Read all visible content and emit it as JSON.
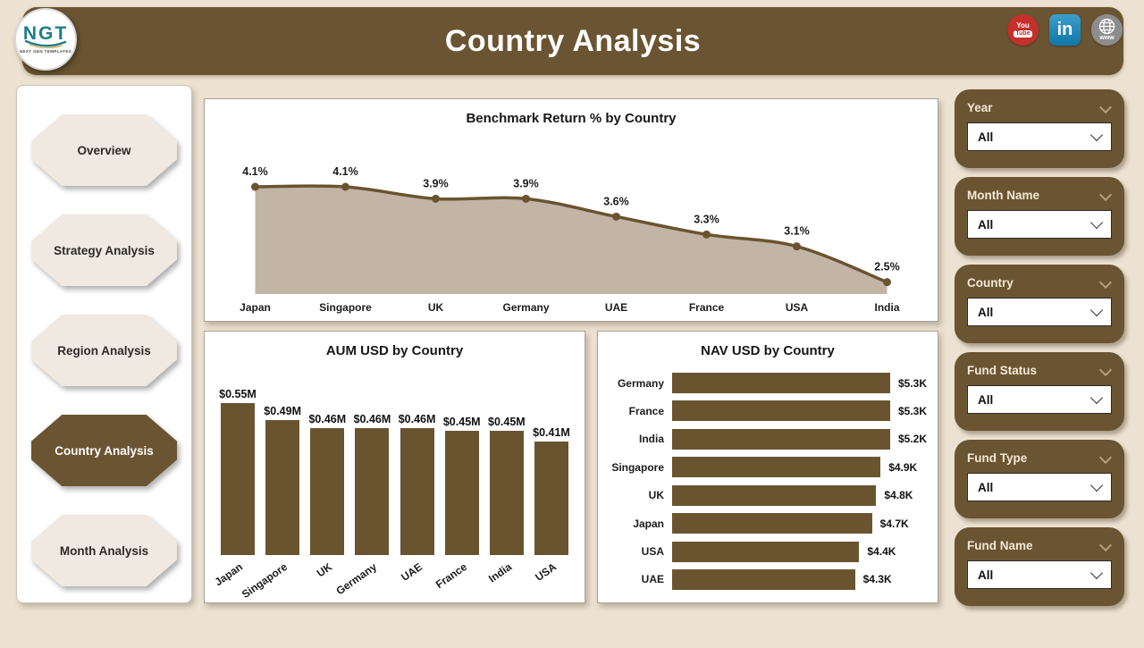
{
  "header": {
    "title": "Country Analysis",
    "logo": {
      "text": "NGT",
      "subtext": "NEXT GEN TEMPLATES"
    },
    "social": {
      "youtube": "You Tube",
      "linkedin": "in",
      "website": "www"
    }
  },
  "nav": {
    "items": [
      {
        "label": "Overview",
        "active": false
      },
      {
        "label": "Strategy Analysis",
        "active": false
      },
      {
        "label": "Region Analysis",
        "active": false
      },
      {
        "label": "Country Analysis",
        "active": true
      },
      {
        "label": "Month Analysis",
        "active": false
      }
    ]
  },
  "filters": [
    {
      "label": "Year",
      "value": "All"
    },
    {
      "label": "Month Name",
      "value": "All"
    },
    {
      "label": "Country",
      "value": "All"
    },
    {
      "label": "Fund Status",
      "value": "All"
    },
    {
      "label": "Fund Type",
      "value": "All"
    },
    {
      "label": "Fund Name",
      "value": "All"
    }
  ],
  "colors": {
    "brand_brown": "#6B5431",
    "bar_brown": "#6A5430",
    "area_fill": "#C2B5A6",
    "page_bg": "#EDE2D1",
    "panel_bg": "#FFFFFF",
    "text_dark": "#171717",
    "youtube_red": "#C4302B",
    "linkedin_blue": "#0E76A8",
    "globe_gray": "#8D8D8D",
    "logo_teal": "#1F7D8A"
  },
  "chart_data": [
    {
      "type": "area",
      "title": "Benchmark Return % by Country",
      "categories": [
        "Japan",
        "Singapore",
        "UK",
        "Germany",
        "UAE",
        "France",
        "USA",
        "India"
      ],
      "values": [
        4.1,
        4.1,
        3.9,
        3.9,
        3.6,
        3.3,
        3.1,
        2.5
      ],
      "labels": [
        "4.1%",
        "4.1%",
        "3.9%",
        "3.9%",
        "3.6%",
        "3.3%",
        "3.1%",
        "2.5%"
      ],
      "ylim": [
        2.3,
        4.4
      ],
      "grid": false,
      "legend": "none"
    },
    {
      "type": "bar",
      "title": "AUM USD by Country",
      "categories": [
        "Japan",
        "Singapore",
        "UK",
        "Germany",
        "UAE",
        "France",
        "India",
        "USA"
      ],
      "values": [
        0.55,
        0.49,
        0.46,
        0.46,
        0.46,
        0.45,
        0.45,
        0.41
      ],
      "labels": [
        "$0.55M",
        "$0.49M",
        "$0.46M",
        "$0.46M",
        "$0.46M",
        "$0.45M",
        "$0.45M",
        "$0.41M"
      ],
      "ylim": [
        0,
        0.55
      ],
      "grid": false,
      "legend": "none"
    },
    {
      "type": "horizontal-bar",
      "title": "NAV USD by Country",
      "categories": [
        "Germany",
        "France",
        "India",
        "Singapore",
        "UK",
        "Japan",
        "USA",
        "UAE"
      ],
      "values": [
        5.3,
        5.3,
        5.2,
        4.9,
        4.8,
        4.7,
        4.4,
        4.3
      ],
      "labels": [
        "$5.3K",
        "$5.3K",
        "$5.2K",
        "$4.9K",
        "$4.8K",
        "$4.7K",
        "$4.4K",
        "$4.3K"
      ],
      "xlim": [
        0,
        5.3
      ],
      "grid": false,
      "legend": "none"
    }
  ]
}
